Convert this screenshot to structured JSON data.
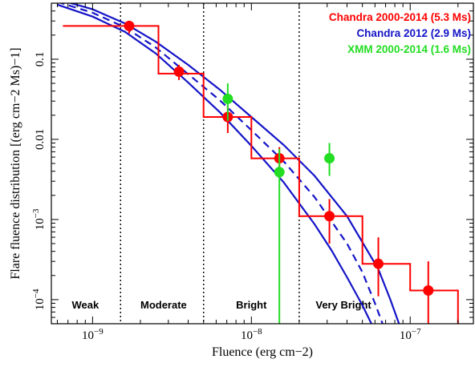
{
  "chart_data": {
    "type": "scatter",
    "x_scale": "log",
    "y_scale": "log",
    "xlabel": "Fluence (erg cm−2)",
    "ylabel": "Flare fluence distribution [(erg cm−2 Ms)−1]",
    "xlim": [
      5.5e-10,
      2.5e-07
    ],
    "ylim": [
      5e-05,
      0.5
    ],
    "x_ticks": [
      {
        "value": 1e-09,
        "label": "10−9"
      },
      {
        "value": 1e-08,
        "label": "10−8"
      },
      {
        "value": 1e-07,
        "label": "10−7"
      }
    ],
    "y_ticks": [
      {
        "value": 0.0001,
        "label": "10−4"
      },
      {
        "value": 0.001,
        "label": "10−3"
      },
      {
        "value": 0.01,
        "label": "0.01"
      },
      {
        "value": 0.1,
        "label": "0.1"
      }
    ],
    "region_boundaries": [
      1.5e-09,
      5e-09,
      2e-08
    ],
    "regions": [
      {
        "label": "Weak",
        "x": 9e-10
      },
      {
        "label": "Moderate",
        "x": 2.8e-09
      },
      {
        "label": "Bright",
        "x": 1e-08
      },
      {
        "label": "Very Bright",
        "x": 3.8e-08
      }
    ],
    "legend_position": "top-right",
    "legend": [
      {
        "label": "Chandra 2000-2014 (5.3 Ms)",
        "color": "#ff0000"
      },
      {
        "label": "Chandra 2012 (2.9 Ms)",
        "color": "#1414c8"
      },
      {
        "label": "XMM 2000-2014 (1.6 Ms)",
        "color": "#22dd22"
      }
    ],
    "series": [
      {
        "name": "Chandra 2000-2014 (5.3 Ms)",
        "color": "#ff0000",
        "histogram_edges": [
          6.5e-10,
          2.6e-09,
          5e-09,
          1e-08,
          2e-08,
          4e-08,
          5e-08,
          1e-07,
          2e-07
        ],
        "histogram_values": [
          0.26,
          0.066,
          0.019,
          0.0058,
          0.0011,
          0.0011,
          0.00028,
          0.00013
        ],
        "points": [
          {
            "x": 1.7e-09,
            "y": 0.26,
            "ylo": 0.21,
            "yhi": 0.3
          },
          {
            "x": 3.5e-09,
            "y": 0.07,
            "ylo": 0.055,
            "yhi": 0.085
          },
          {
            "x": 7.1e-09,
            "y": 0.019,
            "ylo": 0.012,
            "yhi": 0.027
          },
          {
            "x": 1.5e-08,
            "y": 0.0058,
            "ylo": 0.0035,
            "yhi": 0.008
          },
          {
            "x": 3.1e-08,
            "y": 0.0011,
            "ylo": 0.0005,
            "yhi": 0.0018
          },
          {
            "x": 6.3e-08,
            "y": 0.00028,
            "ylo": 0.00011,
            "yhi": 0.0006
          },
          {
            "x": 1.3e-07,
            "y": 0.00013,
            "ylo": 5e-05,
            "yhi": 0.0003
          }
        ]
      },
      {
        "name": "XMM 2000-2014 (1.6 Ms)",
        "color": "#22dd22",
        "points": [
          {
            "x": 7.1e-09,
            "y": 0.032,
            "ylo": 0.017,
            "yhi": 0.05
          },
          {
            "x": 1.5e-08,
            "y": 0.0039,
            "ylo": 5e-05,
            "yhi": 0.0076
          },
          {
            "x": 3.1e-08,
            "y": 0.0058,
            "ylo": 0.0035,
            "yhi": 0.009
          }
        ]
      },
      {
        "name": "Chandra 2012 (2.9 Ms)",
        "color": "#1414c8",
        "curves": [
          {
            "style": "solid",
            "points": [
              [
                6e-10,
                0.48
              ],
              [
                1e-09,
                0.34
              ],
              [
                1.6e-09,
                0.22
              ],
              [
                2.5e-09,
                0.118
              ],
              [
                4e-09,
                0.051
              ],
              [
                6.3e-09,
                0.022
              ],
              [
                1e-08,
                0.0083
              ],
              [
                1.6e-08,
                0.0029
              ],
              [
                2.5e-08,
                0.00087
              ],
              [
                3.2e-08,
                0.00041
              ],
              [
                4e-08,
                0.00019
              ],
              [
                5e-08,
                8.5e-05
              ],
              [
                5.7e-08,
                5e-05
              ]
            ]
          },
          {
            "style": "dashed",
            "points": [
              [
                6e-10,
                0.52
              ],
              [
                1e-09,
                0.38
              ],
              [
                1.6e-09,
                0.25
              ],
              [
                2.5e-09,
                0.14
              ],
              [
                4e-09,
                0.065
              ],
              [
                6.3e-09,
                0.031
              ],
              [
                1e-08,
                0.013
              ],
              [
                1.6e-08,
                0.0053
              ],
              [
                2.5e-08,
                0.0019
              ],
              [
                4e-08,
                0.0005
              ],
              [
                5e-08,
                0.00022
              ],
              [
                6e-08,
                9e-05
              ],
              [
                6.7e-08,
                5e-05
              ]
            ]
          },
          {
            "style": "solid",
            "points": [
              [
                6e-10,
                0.56
              ],
              [
                1e-09,
                0.42
              ],
              [
                1.6e-09,
                0.28
              ],
              [
                2.5e-09,
                0.165
              ],
              [
                4e-09,
                0.085
              ],
              [
                6.3e-09,
                0.042
              ],
              [
                1e-08,
                0.019
              ],
              [
                1.6e-08,
                0.0085
              ],
              [
                2.5e-08,
                0.0035
              ],
              [
                4e-08,
                0.0011
              ],
              [
                6.3e-08,
                0.00024
              ],
              [
                7.5e-08,
                0.0001
              ],
              [
                8.5e-08,
                5e-05
              ]
            ]
          }
        ]
      }
    ]
  }
}
